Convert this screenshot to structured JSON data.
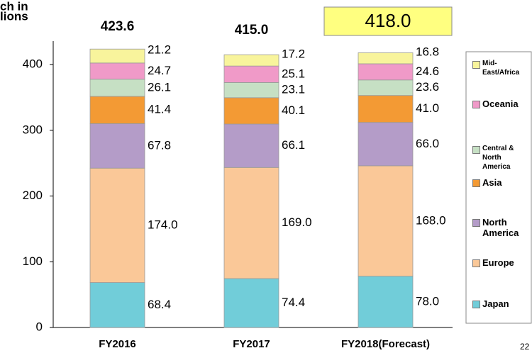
{
  "chart_data": {
    "type": "stacked_bar",
    "y_label_lines": [
      "ch in",
      "lions"
    ],
    "page_number": "22",
    "categories": [
      "FY2016",
      "FY2017",
      "FY2018(Forecast)"
    ],
    "series": [
      {
        "name": "Japan",
        "color": "#71cdd9",
        "values": [
          68.4,
          74.4,
          78.0
        ],
        "value_labels": [
          "68.4",
          "74.4",
          "78.0"
        ]
      },
      {
        "name": "Europe",
        "color": "#fac898",
        "values": [
          174.0,
          169.0,
          168.0
        ],
        "value_labels": [
          "174.0",
          "169.0",
          "168.0"
        ]
      },
      {
        "name": "North America",
        "color": "#b49cc8",
        "values": [
          67.8,
          66.1,
          66.0
        ],
        "value_labels": [
          "67.8",
          "66.1",
          "66.0"
        ]
      },
      {
        "name": "Asia",
        "color": "#f39a34",
        "values": [
          41.4,
          40.1,
          41.0
        ],
        "value_labels": [
          "41.4",
          "40.1",
          "41.0"
        ]
      },
      {
        "name": "Central & North America",
        "color": "#c6e0c4",
        "values": [
          26.1,
          23.1,
          23.6
        ],
        "value_labels": [
          "26.1",
          "23.1",
          "23.6"
        ]
      },
      {
        "name": "Oceania",
        "color": "#f09ac8",
        "values": [
          24.7,
          25.1,
          24.6
        ],
        "value_labels": [
          "24.7",
          "25.1",
          "24.6"
        ]
      },
      {
        "name": "Mid-East/Africa",
        "color": "#f8f49c",
        "values": [
          21.2,
          17.2,
          16.8
        ],
        "value_labels": [
          "21.2",
          "17.2",
          "16.8"
        ]
      }
    ],
    "totals": [
      423.6,
      415.0,
      418.0
    ],
    "total_labels": [
      "423.6",
      "415.0",
      "418.0"
    ],
    "ylim": [
      0,
      440
    ],
    "yticks": [
      0,
      100,
      200,
      300,
      400
    ],
    "grid": false
  }
}
